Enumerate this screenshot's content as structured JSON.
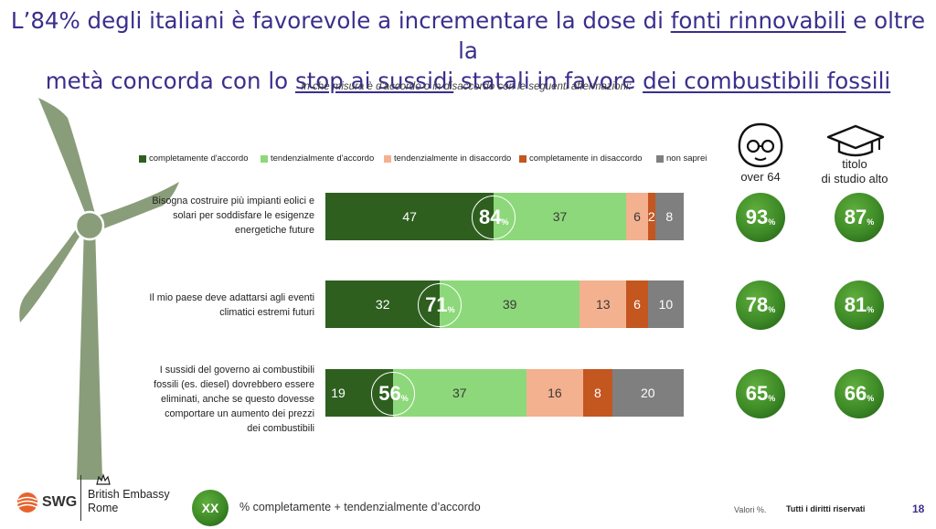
{
  "title": {
    "line1_a": "L’84% degli italiani è favorevole a incrementare la dose di ",
    "line1_u": "fonti rinnovabili",
    "line1_b": " e oltre la",
    "line2_a": "metà concorda con lo ",
    "line2_u1": "stop ai sussidi",
    "line2_b": " statali in favore ",
    "line2_u2": "dei combustibili fossili"
  },
  "subtitle": "In che misura è d'accordo o in disaccordo con le seguenti affermazioni:",
  "columns": {
    "over64": "over 64",
    "titolo_1": "titolo",
    "titolo_2": "di studio alto"
  },
  "chart_data": {
    "type": "bar",
    "orientation": "horizontal-stacked",
    "unit": "%",
    "legend": [
      "completamente d'accordo",
      "tendenzialmente d'accordo",
      "tendenzialmente in disaccordo",
      "completamente in disaccordo",
      "non saprei"
    ],
    "colors": [
      "#2e5f1f",
      "#8dd87a",
      "#f4b18f",
      "#c4561f",
      "#7f7f7f"
    ],
    "categories": [
      "Bisogna costruire più impianti eolici e solari per soddisfare le esigenze energetiche future",
      "Il mio paese deve adattarsi agli eventi climatici estremi futuri",
      "I sussidi del governo ai combustibili fossili (es. diesel) dovrebbero essere eliminati, anche se questo dovesse comportare un aumento dei prezzi dei combustibili"
    ],
    "category_lines": [
      [
        "Bisogna costruire più impianti eolici e",
        "solari per soddisfare le esigenze",
        "energetiche future"
      ],
      [
        "Il mio paese deve adattarsi agli eventi",
        "climatici estremi futuri"
      ],
      [
        "I sussidi del governo ai combustibili",
        "fossili (es. diesel) dovrebbero essere",
        "eliminati, anche se questo dovesse",
        "comportare un aumento dei prezzi",
        "dei combustibili"
      ]
    ],
    "series": [
      {
        "name": "completamente d'accordo",
        "values": [
          47,
          32,
          19
        ]
      },
      {
        "name": "tendenzialmente d'accordo",
        "values": [
          37,
          39,
          37
        ]
      },
      {
        "name": "tendenzialmente in disaccordo",
        "values": [
          6,
          13,
          16
        ]
      },
      {
        "name": "completamente in disaccordo",
        "values": [
          2,
          6,
          8
        ]
      },
      {
        "name": "non saprei",
        "values": [
          8,
          10,
          20
        ]
      }
    ],
    "totals_agree": [
      84,
      71,
      56
    ],
    "over_64": [
      93,
      78,
      65
    ],
    "titolo_di_studio_alto": [
      87,
      81,
      66
    ]
  },
  "footer": {
    "swg": "SWG",
    "embassy_1": "British Embassy",
    "embassy_2": "Rome",
    "xx": "XX",
    "legend_note": "% completamente + tendenzialmente d’accordo",
    "valori": "Valori %.",
    "rights": "Tutti i diritti riservati",
    "page": "18"
  }
}
